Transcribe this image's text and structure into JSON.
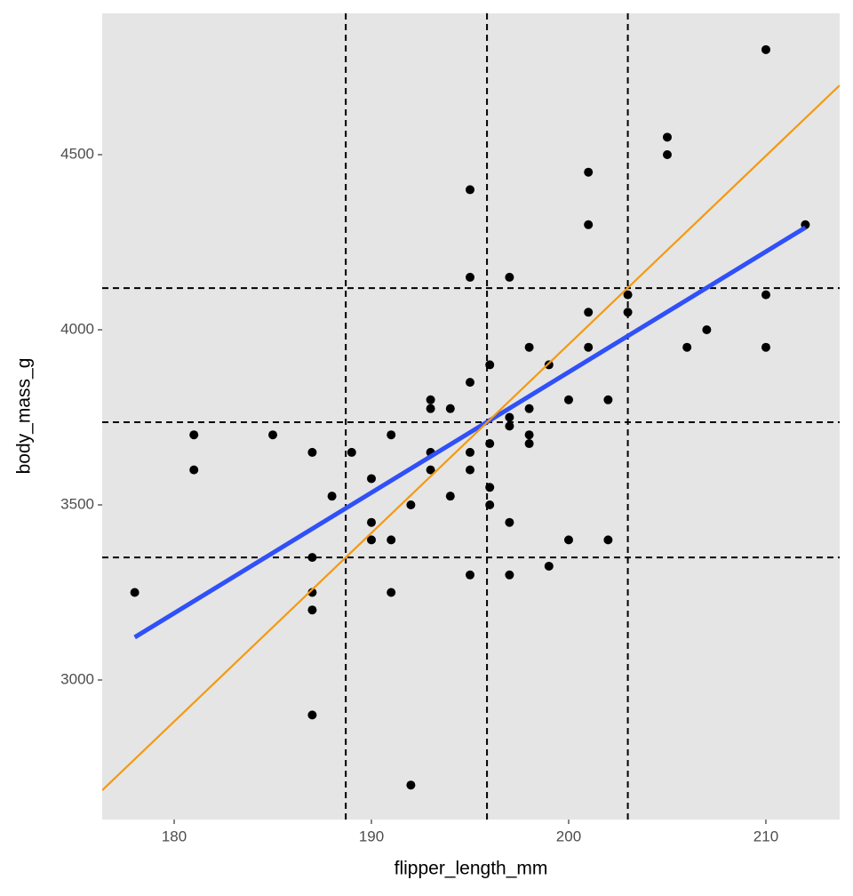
{
  "chart_data": {
    "type": "scatter",
    "x_label": "flipper_length_mm",
    "y_label": "body_mass_g",
    "x": [
      178,
      181,
      181,
      185,
      187,
      187,
      187,
      187,
      187,
      188,
      189,
      190,
      190,
      190,
      191,
      191,
      191,
      192,
      192,
      193,
      193,
      193,
      193,
      194,
      194,
      195,
      195,
      195,
      195,
      195,
      195,
      196,
      196,
      196,
      196,
      197,
      197,
      197,
      197,
      197,
      198,
      198,
      198,
      198,
      199,
      199,
      200,
      200,
      201,
      201,
      201,
      201,
      202,
      202,
      203,
      203,
      205,
      205,
      206,
      207,
      210,
      210,
      210,
      212
    ],
    "values": [
      3250,
      3700,
      3600,
      3700,
      3650,
      3350,
      3250,
      3200,
      2900,
      3525,
      3650,
      3575,
      3450,
      3400,
      3700,
      3400,
      3250,
      3500,
      2700,
      3800,
      3775,
      3650,
      3600,
      3775,
      3525,
      4400,
      4150,
      3850,
      3650,
      3600,
      3300,
      3900,
      3675,
      3550,
      3500,
      4150,
      3750,
      3725,
      3450,
      3300,
      3950,
      3775,
      3700,
      3675,
      3900,
      3325,
      3800,
      3400,
      4450,
      4300,
      4050,
      3950,
      3800,
      3400,
      4100,
      4050,
      4550,
      4500,
      3950,
      4000,
      4800,
      4100,
      3950,
      4300
    ],
    "color": "#000000",
    "lines": [
      {
        "color": "#3050f8",
        "x": [
          178,
          212
        ],
        "values": [
          3122,
          4292
        ]
      },
      {
        "color": "#f5990f",
        "x": [
          176.35,
          213.74
        ],
        "values": [
          2685,
          4698
        ]
      }
    ],
    "vlines": [
      188.7,
      195.86,
      203.0
    ],
    "hlines": [
      4119,
      3736,
      3350
    ],
    "xlim": [
      176.35,
      213.74
    ],
    "xticks": [
      180,
      190,
      200,
      210
    ],
    "ylim": [
      2601.5,
      4903.6
    ],
    "yticks": [
      3000,
      3500,
      4000,
      4500
    ],
    "grid": false,
    "background": "#e5e5e5"
  }
}
